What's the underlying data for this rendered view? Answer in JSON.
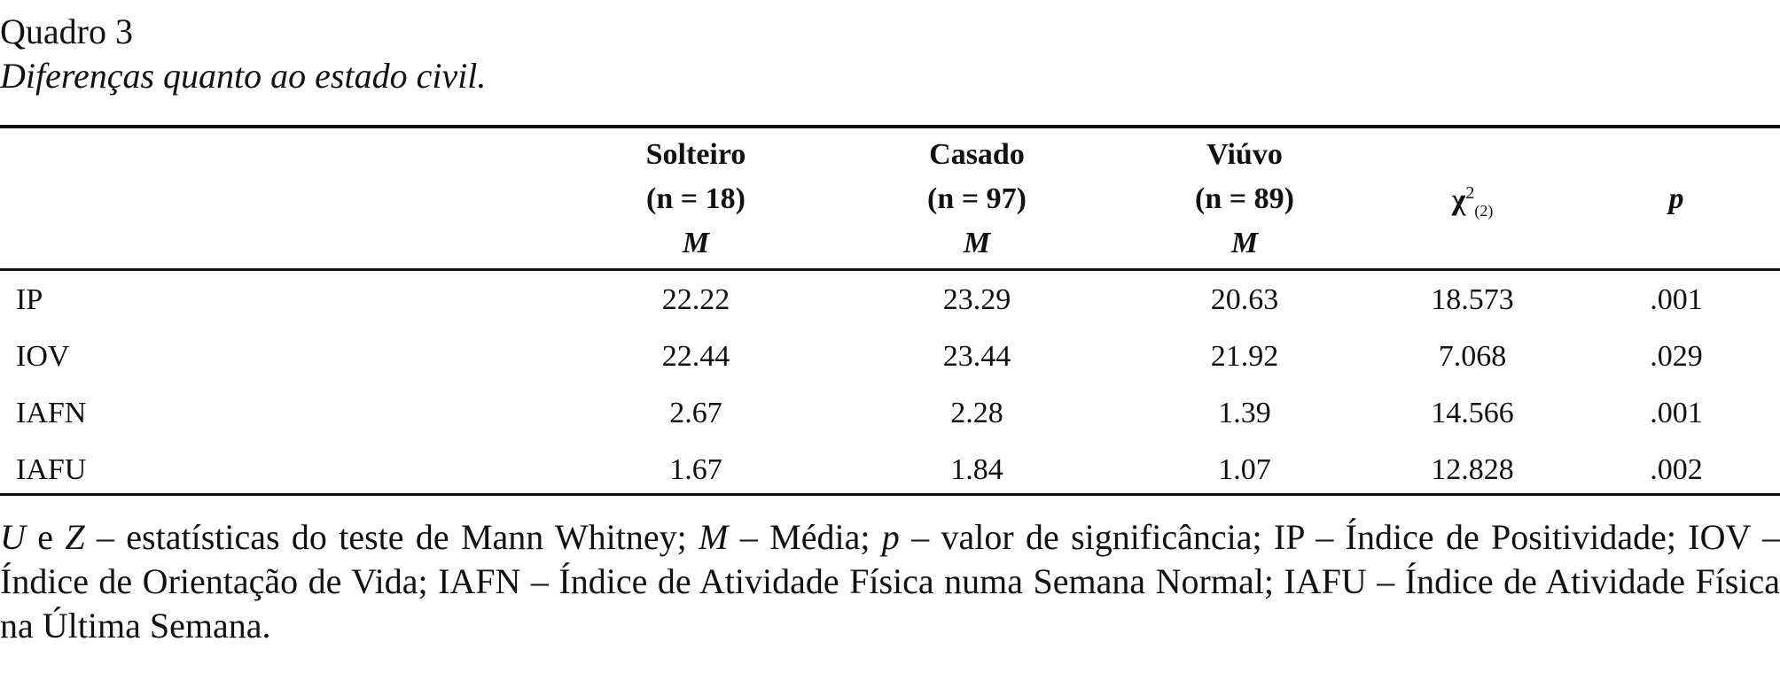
{
  "caption": {
    "label": "Quadro 3",
    "title": "Diferenças quanto ao estado civil."
  },
  "table": {
    "columns": [
      {
        "name": "Solteiro",
        "n": "(n = 18)",
        "stat": "M"
      },
      {
        "name": "Casado",
        "n": "(n = 97)",
        "stat": "M"
      },
      {
        "name": "Viúvo",
        "n": "(n = 89)",
        "stat": "M"
      },
      {
        "symbol": "χ",
        "sup": "2",
        "sub": "(2)"
      },
      {
        "symbol": "p"
      }
    ],
    "rows": [
      [
        "IP",
        "22.22",
        "23.29",
        "20.63",
        "18.573",
        ".001"
      ],
      [
        "IOV",
        "22.44",
        "23.44",
        "21.92",
        "7.068",
        ".029"
      ],
      [
        "IAFN",
        "2.67",
        "2.28",
        "1.39",
        "14.566",
        ".001"
      ],
      [
        "IAFU",
        "1.67",
        "1.84",
        "1.07",
        "12.828",
        ".002"
      ]
    ]
  },
  "note": [
    {
      "text": "U",
      "italic": true
    },
    {
      "text": " e "
    },
    {
      "text": "Z",
      "italic": true
    },
    {
      "text": " – estatísticas do teste de Mann Whitney; "
    },
    {
      "text": "M",
      "italic": true
    },
    {
      "text": " – Média; "
    },
    {
      "text": "p",
      "italic": true
    },
    {
      "text": " – valor de significância; IP – Índice de Positividade; IOV – Índice de Orientação de Vida; IAFN – Índice de Atividade Física numa Semana Normal; IAFU – Índice de Atividade Física na Última Semana."
    }
  ]
}
